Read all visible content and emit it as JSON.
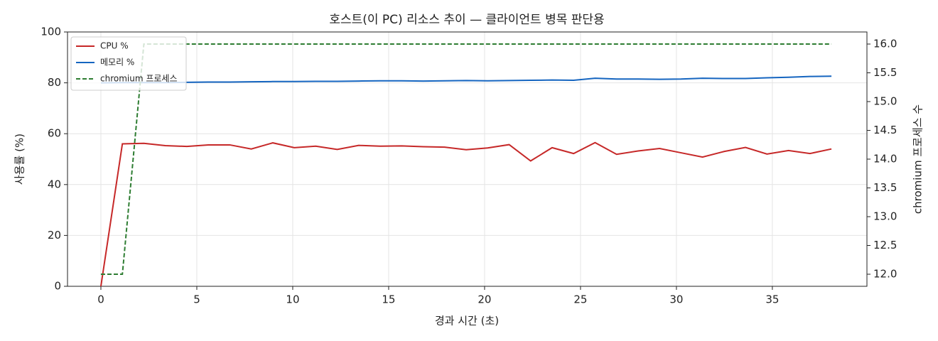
{
  "chart_data": {
    "type": "line",
    "title": "호스트(이 PC) 리소스 추이 — 클라이언트 병목 판단용",
    "x_label": "경과 시간 (초)",
    "y_label": "사용률 (%)",
    "y2_label": "chromium 프로세스 수",
    "x": [
      0,
      1.12,
      2.24,
      3.36,
      4.48,
      5.6,
      6.72,
      7.84,
      8.96,
      10.08,
      11.2,
      12.32,
      13.44,
      14.56,
      15.68,
      16.8,
      17.92,
      19.04,
      20.16,
      21.28,
      22.4,
      23.52,
      24.64,
      25.76,
      26.88,
      28.0,
      29.12,
      30.24,
      31.36,
      32.48,
      33.6,
      34.72,
      35.84,
      36.96,
      38.08
    ],
    "series": [
      {
        "name": "CPU %",
        "color": "#c62828",
        "linestyle": "solid",
        "values": [
          0,
          56.0,
          56.2,
          55.3,
          55.0,
          55.6,
          55.6,
          54.0,
          56.4,
          54.5,
          55.1,
          53.8,
          55.4,
          55.1,
          55.2,
          54.9,
          54.7,
          53.7,
          54.4,
          55.7,
          49.3,
          54.5,
          52.2,
          56.5,
          51.9,
          53.2,
          54.2,
          52.5,
          50.8,
          53.0,
          54.6,
          52.0,
          53.4,
          52.2,
          54.0
        ]
      },
      {
        "name": "메모리 %",
        "color": "#1565c0",
        "linestyle": "solid",
        "values": [
          80.0,
          80.1,
          80.1,
          80.1,
          80.2,
          80.3,
          80.3,
          80.4,
          80.5,
          80.5,
          80.6,
          80.6,
          80.7,
          80.8,
          80.8,
          80.7,
          80.8,
          80.9,
          80.8,
          80.9,
          81.0,
          81.1,
          81.0,
          81.8,
          81.5,
          81.5,
          81.4,
          81.5,
          81.8,
          81.7,
          81.7,
          82.0,
          82.2,
          82.5,
          82.6
        ]
      },
      {
        "name": "chromium 프로세스",
        "color": "#2e7d32",
        "linestyle": "dashed",
        "axis": "y2",
        "values": [
          12,
          12,
          16,
          16,
          16,
          16,
          16,
          16,
          16,
          16,
          16,
          16,
          16,
          16,
          16,
          16,
          16,
          16,
          16,
          16,
          16,
          16,
          16,
          16,
          16,
          16,
          16,
          16,
          16,
          16,
          16,
          16,
          16,
          16,
          16
        ]
      }
    ],
    "xlim": [
      -1.74,
      39.93
    ],
    "xticks": [
      0,
      5,
      10,
      15,
      20,
      25,
      30,
      35
    ],
    "ylim": [
      0,
      100
    ],
    "yticks": [
      0,
      20,
      40,
      60,
      80,
      100
    ],
    "y2lim": [
      11.79,
      16.21
    ],
    "y2ticks": [
      {
        "value": 12,
        "label": "12.0"
      },
      {
        "value": 12.5,
        "label": "12.5"
      },
      {
        "value": 13,
        "label": "13.0"
      },
      {
        "value": 13.5,
        "label": "13.5"
      },
      {
        "value": 14,
        "label": "14.0"
      },
      {
        "value": 14.5,
        "label": "14.5"
      },
      {
        "value": 15,
        "label": "15.0"
      },
      {
        "value": 15.5,
        "label": "15.5"
      },
      {
        "value": 16,
        "label": "16.0"
      }
    ],
    "grid": true,
    "legend": "upper-left"
  }
}
